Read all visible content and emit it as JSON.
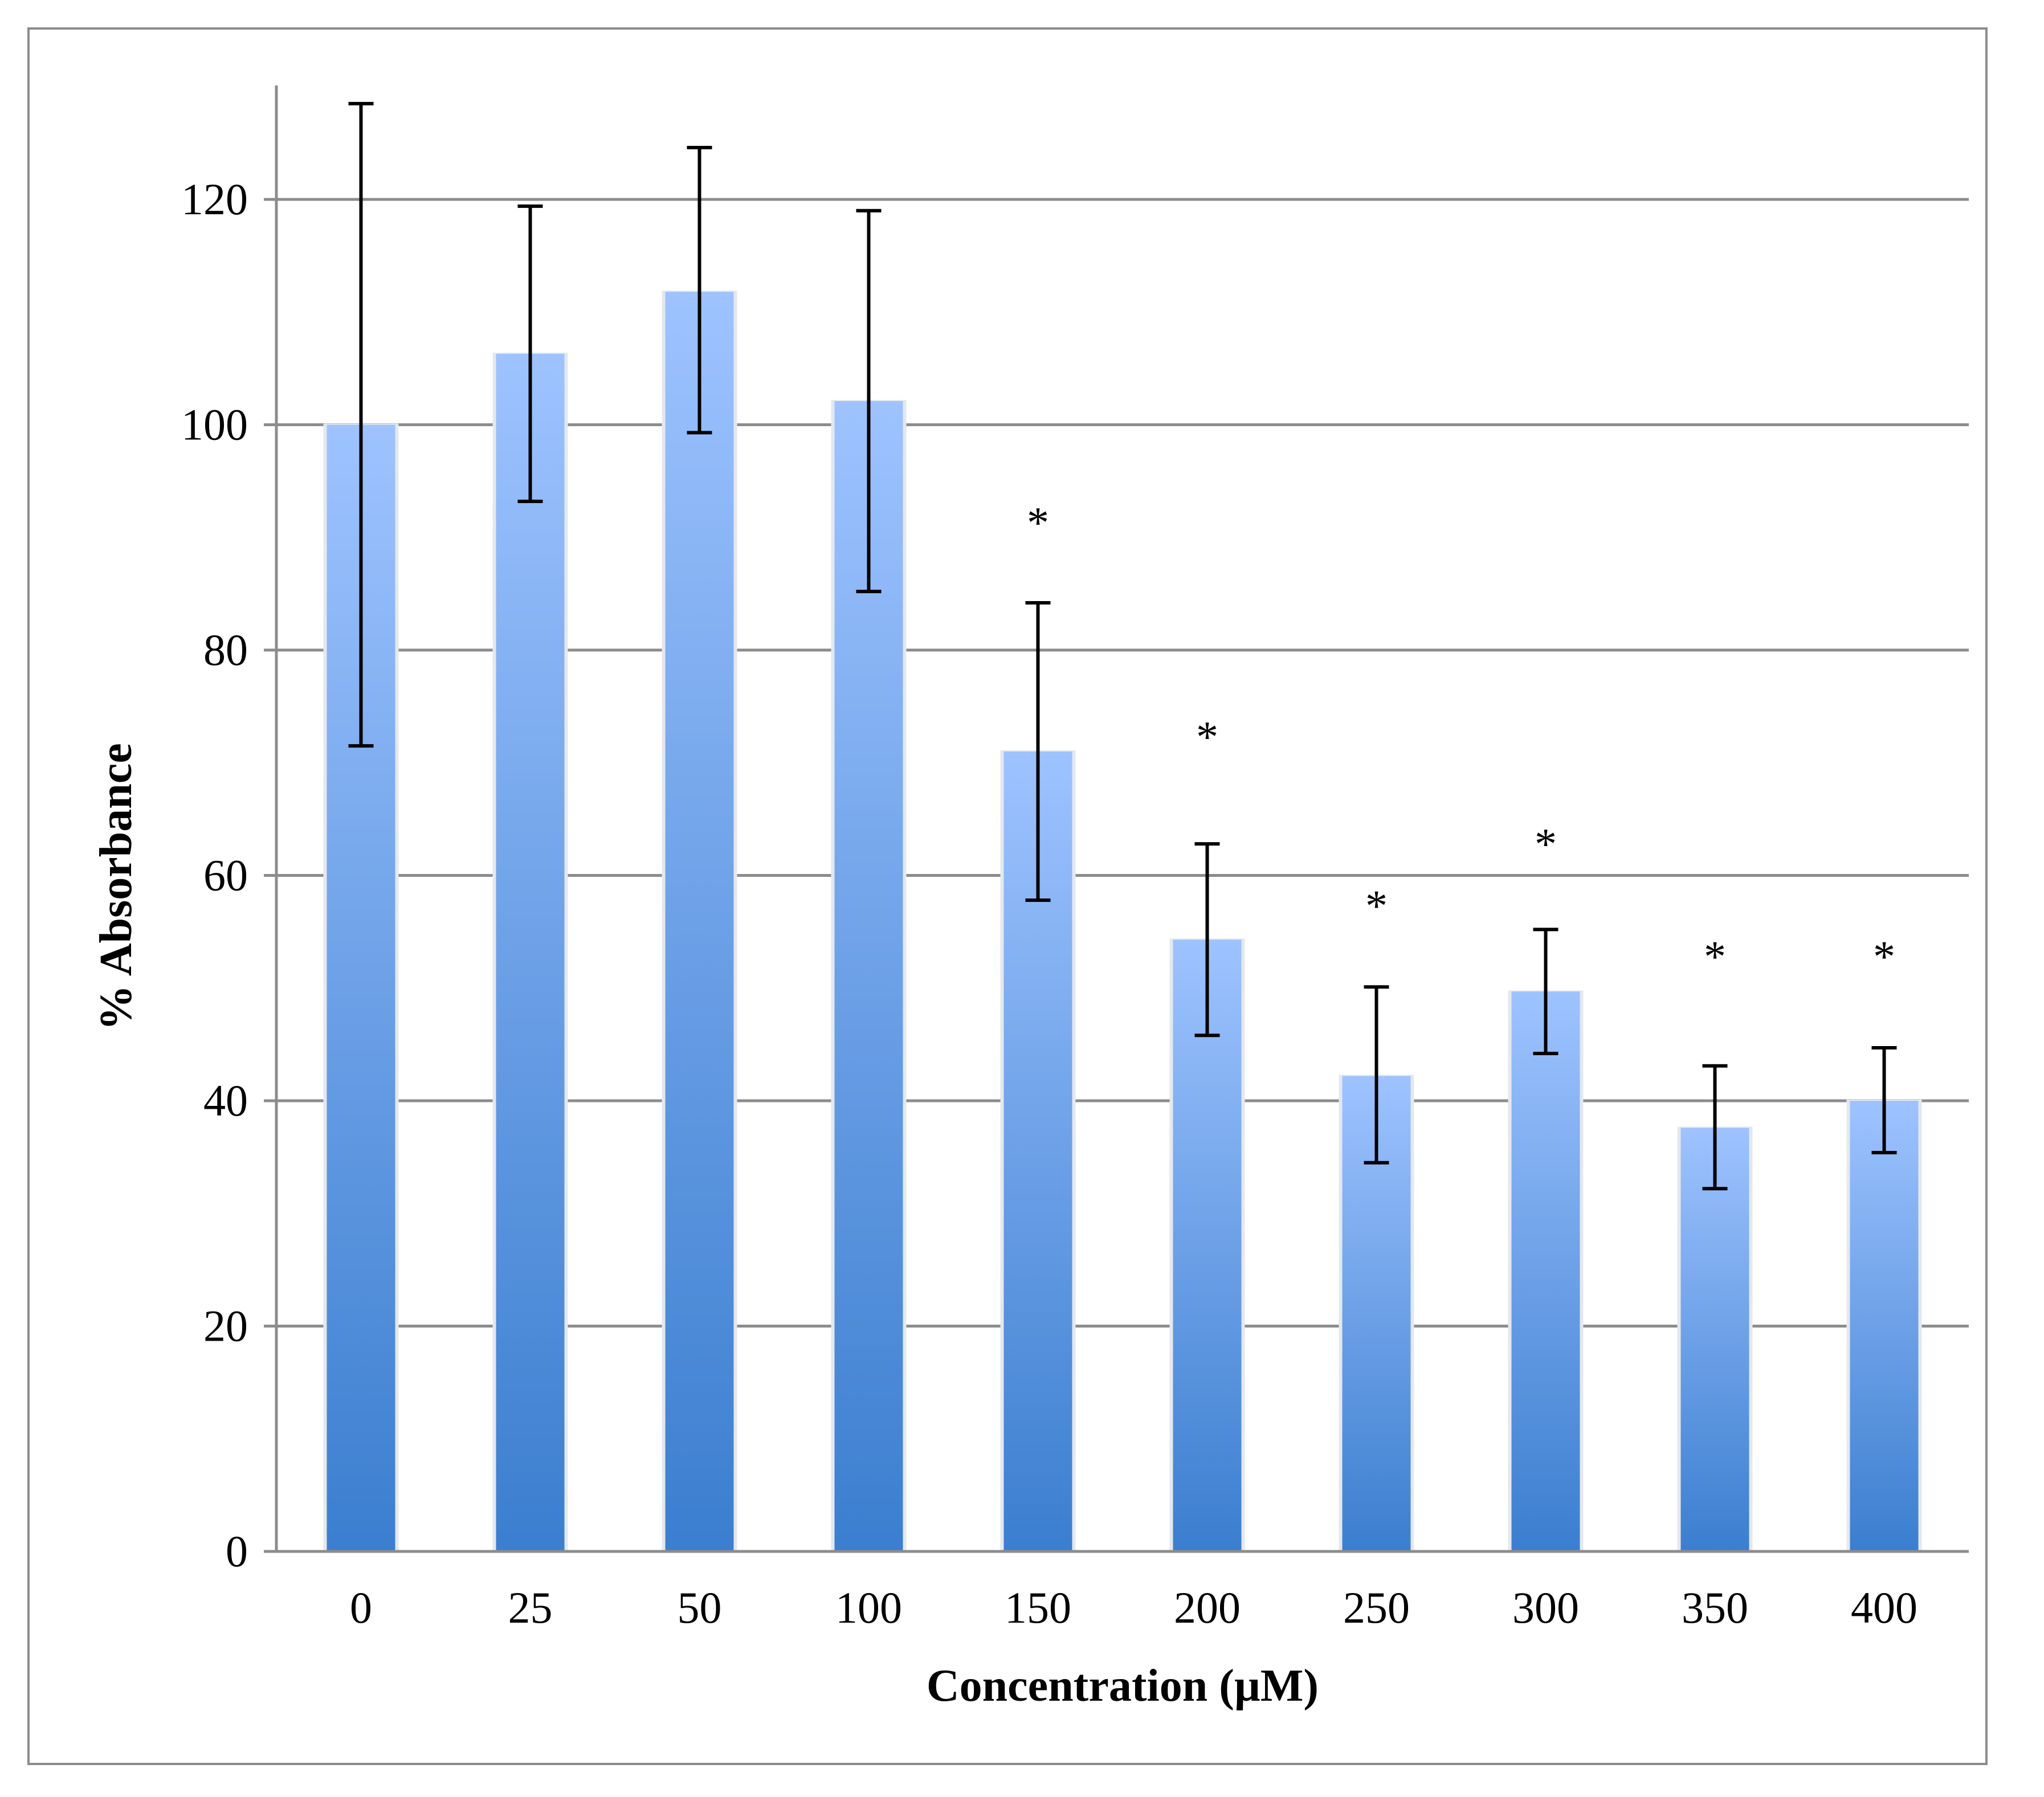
{
  "chart_data": {
    "type": "bar",
    "title": "",
    "xlabel": "Concentration (µM)",
    "ylabel": "% Absorbance",
    "categories": [
      "0",
      "25",
      "50",
      "100",
      "150",
      "200",
      "250",
      "300",
      "350",
      "400"
    ],
    "values": [
      100,
      106.3,
      111.8,
      102.1,
      71.0,
      54.3,
      42.2,
      49.7,
      37.6,
      40.0
    ],
    "error_upper": [
      128.5,
      119.4,
      124.6,
      119.0,
      84.2,
      62.8,
      50.1,
      55.2,
      43.1,
      44.7
    ],
    "error_lower": [
      71.5,
      93.2,
      99.3,
      85.2,
      57.8,
      45.8,
      34.5,
      44.2,
      32.2,
      35.4
    ],
    "significance_markers": [
      "",
      "",
      "",
      "",
      "*",
      "*",
      "*",
      "*",
      "*",
      "*"
    ],
    "significance_levels": [
      null,
      null,
      null,
      null,
      92,
      73,
      58,
      63.5,
      53.5,
      53.5
    ],
    "ylim": [
      0,
      130
    ],
    "yticks": [
      0,
      20,
      40,
      60,
      80,
      100,
      120
    ],
    "grid": true,
    "legend": "none",
    "colors": {
      "bar_top": "#9ec3ff",
      "bar_bottom": "#3b7ecf",
      "grid": "#8c8c8c",
      "axis": "#8c8c8c",
      "error_bar": "#000000",
      "frame": "#8c8c8c"
    }
  }
}
